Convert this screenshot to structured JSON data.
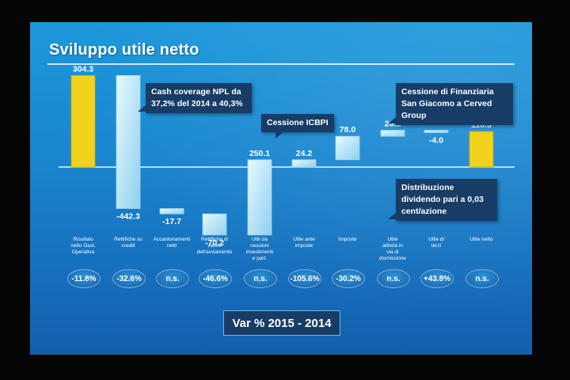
{
  "title": "Sviluppo utile netto",
  "colors": {
    "accent": "#f1d21d",
    "bar": "#c8ecfa",
    "callout_bg": "#173d67"
  },
  "chart_data": {
    "type": "bar",
    "subtype": "waterfall",
    "categories": [
      "Risultato netto Gest. Operativa",
      "Rettifiche su crediti",
      "Accantonamenti netti",
      "Rettifiche di valore dell'avviamento",
      "Utili da cessioni investimenti e part.",
      "Utile ante imposte",
      "Imposte",
      "Utile attività in via di dismissione",
      "Utile di terzi",
      "Utile netto"
    ],
    "values": [
      304.3,
      -442.3,
      -17.7,
      -70.2,
      250.1,
      24.2,
      78.0,
      20.1,
      -4.0,
      118.3
    ],
    "labels": [
      "304.3",
      "-442.3",
      "-17.7",
      "-70.2",
      "250.1",
      "24.2",
      "78.0",
      "20.1",
      "-4.0",
      "118.3"
    ],
    "totals": [
      true,
      false,
      false,
      false,
      false,
      true,
      false,
      false,
      false,
      true
    ],
    "highlight": [
      true,
      false,
      false,
      false,
      false,
      false,
      false,
      false,
      false,
      true
    ],
    "pct_changes": [
      "-11.8%",
      "-32.6%",
      "n.s.",
      "-46.6%",
      "n.s.",
      "-105.6%",
      "-30.2%",
      "n.s.",
      "+43.8%",
      "n.s."
    ],
    "pct_label": "Var % 2015 - 2014"
  },
  "callouts": {
    "npl": "Cash coverage NPL da 37,2% del 2014 a 40,3%",
    "icbpi": "Cessione  ICBPI",
    "finanziaria": "Cessione di Finanziaria San Giacomo a Cerved Group",
    "dividendo": "Distribuzione dividendo pari a 0,03 cent/azione"
  }
}
